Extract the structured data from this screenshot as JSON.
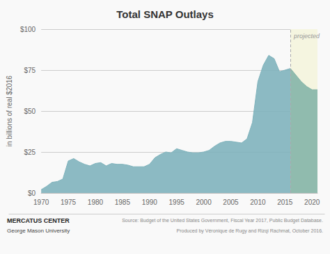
{
  "chart_data": {
    "type": "area",
    "title": "Total SNAP Outlays",
    "ylabel": "in billions of real $2016",
    "series": [
      {
        "color": "#7fb3bc",
        "x": [
          1970,
          1971,
          1972,
          1973,
          1974,
          1975,
          1976,
          1977,
          1978,
          1979,
          1980,
          1981,
          1982,
          1983,
          1984,
          1985,
          1986,
          1987,
          1988,
          1989,
          1990,
          1991,
          1992,
          1993,
          1994,
          1995,
          1996,
          1997,
          1998,
          1999,
          2000,
          2001,
          2002,
          2003,
          2004,
          2005,
          2006,
          2007,
          2008,
          2009,
          2010,
          2011,
          2012,
          2013,
          2014,
          2015,
          2016
        ],
        "values": [
          2.0,
          4.0,
          6.5,
          7.0,
          8.5,
          19.5,
          21.0,
          19.0,
          17.5,
          16.5,
          18.0,
          18.5,
          16.5,
          18.0,
          17.5,
          17.5,
          17.0,
          16.0,
          16.0,
          16.0,
          17.5,
          21.5,
          23.5,
          25.0,
          24.5,
          27.0,
          26.0,
          25.0,
          24.5,
          24.5,
          25.0,
          26.0,
          28.5,
          30.5,
          31.5,
          31.5,
          31.0,
          30.5,
          33.0,
          43.0,
          68.0,
          78.0,
          84.0,
          82.0,
          74.0,
          75.0,
          76.0
        ]
      },
      {
        "color": "#85b5a8",
        "x": [
          2016,
          2017,
          2018,
          2019,
          2020,
          2021
        ],
        "values": [
          76.0,
          72.0,
          68.0,
          65.0,
          63.0,
          63.0
        ]
      }
    ],
    "xlim": [
      1970,
      2021
    ],
    "xticks": [
      1970,
      1975,
      1980,
      1985,
      1990,
      1995,
      2000,
      2005,
      2010,
      2015,
      2020
    ],
    "ylim": [
      0,
      100
    ],
    "yticks": [
      {
        "value": 0,
        "label": "$0"
      },
      {
        "value": 25,
        "label": "$25"
      },
      {
        "value": 50,
        "label": "$50"
      },
      {
        "value": 75,
        "label": "$75"
      },
      {
        "value": 100,
        "label": "$100"
      }
    ],
    "grid": true,
    "annotations": [
      {
        "text": "projected",
        "x": 2016
      },
      {
        "text": "MERCATUS CENTER"
      },
      {
        "text": "George Mason University"
      },
      {
        "text": "Source: Budget of the United States Government, Fiscal Year 2017, Public Budget Database."
      },
      {
        "text": "Produced by Véronique de Rugy and Rizqi Rachmat, October 2016."
      }
    ]
  }
}
